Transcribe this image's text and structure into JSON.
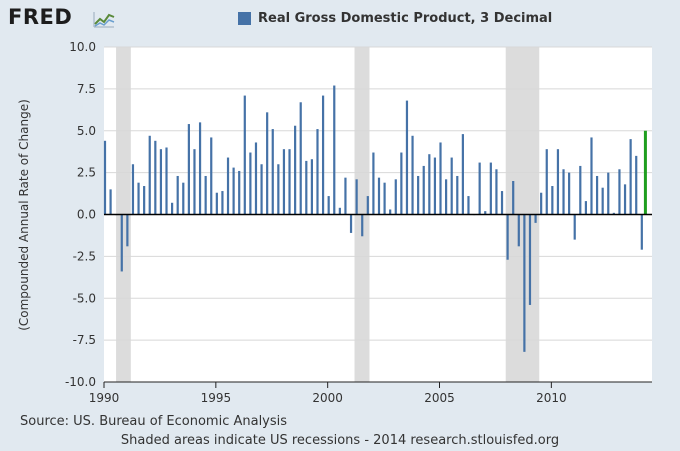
{
  "logo": {
    "text": "FRED",
    "icon": "fred-chart-icon"
  },
  "colors": {
    "bar": "#4572a7",
    "highlight": "#1f9e1f",
    "recession": "#dcdcdc",
    "plot_bg": "#ffffff"
  },
  "source_text": "Source: US. Bureau of Economic Analysis",
  "note_text": "Shaded areas indicate US recessions - 2014 research.stlouisfed.org",
  "chart_data": {
    "type": "bar",
    "series": [
      {
        "name": "Real Gross Domestic Product, 3 Decimal",
        "x": [
          "1990Q1",
          "1990Q2",
          "1990Q3",
          "1990Q4",
          "1991Q1",
          "1991Q2",
          "1991Q3",
          "1991Q4",
          "1992Q1",
          "1992Q2",
          "1992Q3",
          "1992Q4",
          "1993Q1",
          "1993Q2",
          "1993Q3",
          "1993Q4",
          "1994Q1",
          "1994Q2",
          "1994Q3",
          "1994Q4",
          "1995Q1",
          "1995Q2",
          "1995Q3",
          "1995Q4",
          "1996Q1",
          "1996Q2",
          "1996Q3",
          "1996Q4",
          "1997Q1",
          "1997Q2",
          "1997Q3",
          "1997Q4",
          "1998Q1",
          "1998Q2",
          "1998Q3",
          "1998Q4",
          "1999Q1",
          "1999Q2",
          "1999Q3",
          "1999Q4",
          "2000Q1",
          "2000Q2",
          "2000Q3",
          "2000Q4",
          "2001Q1",
          "2001Q2",
          "2001Q3",
          "2001Q4",
          "2002Q1",
          "2002Q2",
          "2002Q3",
          "2002Q4",
          "2003Q1",
          "2003Q2",
          "2003Q3",
          "2003Q4",
          "2004Q1",
          "2004Q2",
          "2004Q3",
          "2004Q4",
          "2005Q1",
          "2005Q2",
          "2005Q3",
          "2005Q4",
          "2006Q1",
          "2006Q2",
          "2006Q3",
          "2006Q4",
          "2007Q1",
          "2007Q2",
          "2007Q3",
          "2007Q4",
          "2008Q1",
          "2008Q2",
          "2008Q3",
          "2008Q4",
          "2009Q1",
          "2009Q2",
          "2009Q3",
          "2009Q4",
          "2010Q1",
          "2010Q2",
          "2010Q3",
          "2010Q4",
          "2011Q1",
          "2011Q2",
          "2011Q3",
          "2011Q4",
          "2012Q1",
          "2012Q2",
          "2012Q3",
          "2012Q4",
          "2013Q1",
          "2013Q2",
          "2013Q3",
          "2013Q4",
          "2014Q1",
          "2014Q2"
        ],
        "values": [
          4.4,
          1.5,
          0,
          -3.4,
          -1.9,
          3.0,
          1.9,
          1.7,
          4.7,
          4.4,
          3.9,
          4.0,
          0.7,
          2.3,
          1.9,
          5.4,
          3.9,
          5.5,
          2.3,
          4.6,
          1.3,
          1.4,
          3.4,
          2.8,
          2.6,
          7.1,
          3.7,
          4.3,
          3.0,
          6.1,
          5.1,
          3.0,
          3.9,
          3.9,
          5.3,
          6.7,
          3.2,
          3.3,
          5.1,
          7.1,
          1.1,
          7.7,
          0.4,
          2.2,
          -1.1,
          2.1,
          -1.3,
          1.1,
          3.7,
          2.2,
          1.9,
          0.3,
          2.1,
          3.7,
          6.8,
          4.7,
          2.3,
          2.9,
          3.6,
          3.4,
          4.3,
          2.1,
          3.4,
          2.3,
          4.8,
          1.1,
          0,
          3.1,
          0.2,
          3.1,
          2.7,
          1.4,
          -2.7,
          2.0,
          -1.9,
          -8.2,
          -5.4,
          -0.5,
          1.3,
          3.9,
          1.7,
          3.9,
          2.7,
          2.5,
          -1.5,
          2.9,
          0.8,
          4.6,
          2.3,
          1.6,
          2.5,
          0.1,
          2.7,
          1.8,
          4.5,
          3.5,
          -2.1,
          5.0
        ]
      }
    ],
    "highlight_last": true,
    "ylabel": "(Compounded Annual Rate of Change)",
    "ylim": [
      -10,
      10
    ],
    "yticks": [
      "10.0",
      "7.5",
      "5.0",
      "2.5",
      "0.0",
      "-2.5",
      "-5.0",
      "-7.5",
      "-10.0"
    ],
    "xlim": [
      1990,
      2014.5
    ],
    "xticks": [
      "1990",
      "1995",
      "2000",
      "2005",
      "2010"
    ],
    "recessions": [
      [
        1990.54,
        1991.2
      ],
      [
        2001.2,
        2001.87
      ],
      [
        2007.96,
        2009.46
      ]
    ],
    "grid": true
  }
}
